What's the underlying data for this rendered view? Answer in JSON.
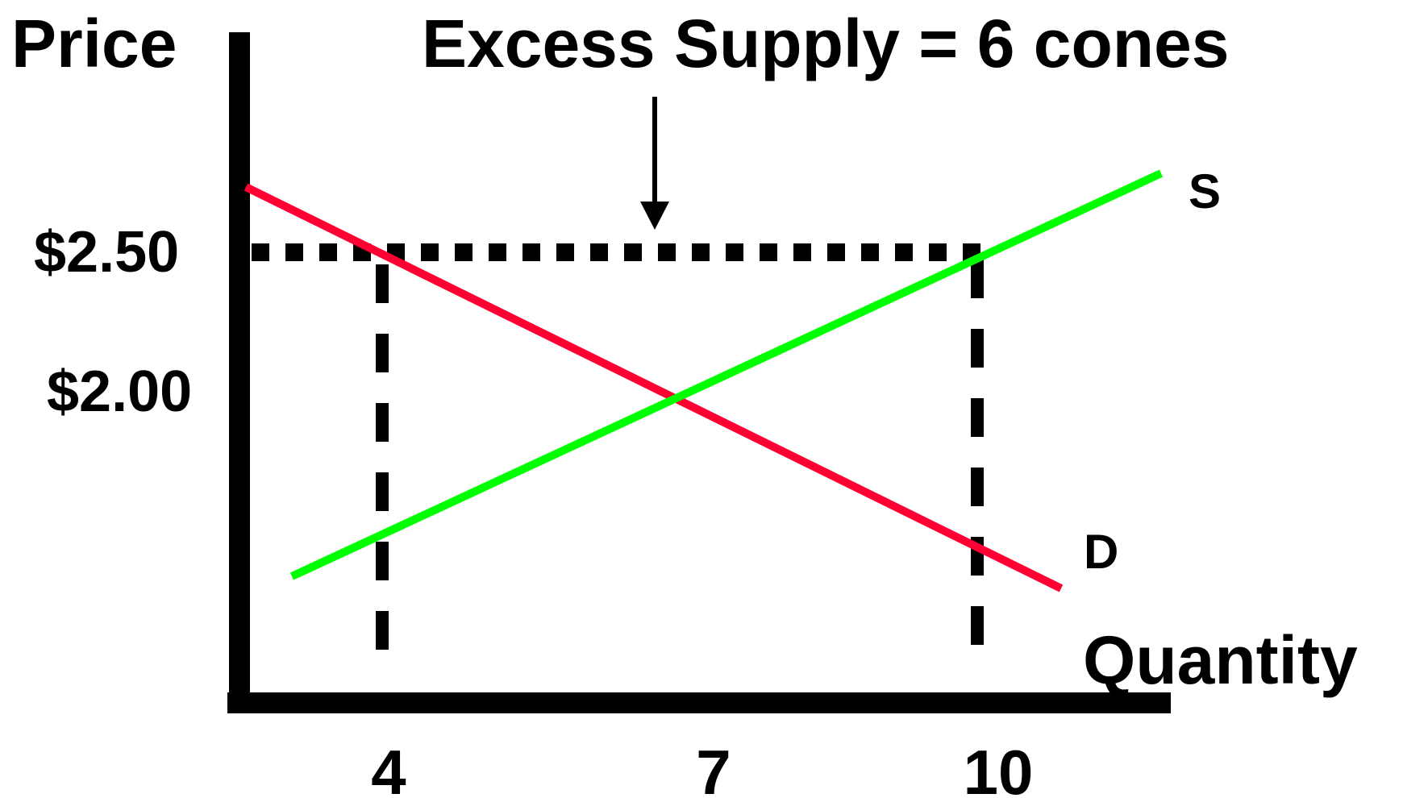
{
  "title": "Excess Supply = 6 cones",
  "y_axis_label": "Price",
  "x_axis_label": "Quantity",
  "price_labels": [
    "$2.50",
    "$2.00"
  ],
  "quantity_labels": [
    "4",
    "7",
    "10"
  ],
  "supply_label": "S",
  "demand_label": "D",
  "colors": {
    "supply": "#00ff00",
    "demand": "#ff0033",
    "axes": "#000000",
    "guides": "#000000"
  },
  "chart_data": {
    "type": "line",
    "xlabel": "Quantity",
    "ylabel": "Price",
    "x_ticks": [
      4,
      7,
      10
    ],
    "y_ticks": [
      "$2.50",
      "$2.00"
    ],
    "series": [
      {
        "name": "S",
        "description_points": [
          [
            1,
            0.9
          ],
          [
            7,
            2.0
          ],
          [
            10,
            2.5
          ],
          [
            12,
            2.88
          ]
        ]
      },
      {
        "name": "D",
        "description_points": [
          [
            0,
            2.94
          ],
          [
            4,
            2.5
          ],
          [
            7,
            2.0
          ],
          [
            10,
            1.55
          ],
          [
            11.3,
            1.35
          ]
        ]
      }
    ],
    "annotations": [
      {
        "text": "Excess Supply = 6 cones",
        "price": 2.5,
        "from_quantity": 4,
        "to_quantity": 10
      }
    ],
    "grid": false
  }
}
